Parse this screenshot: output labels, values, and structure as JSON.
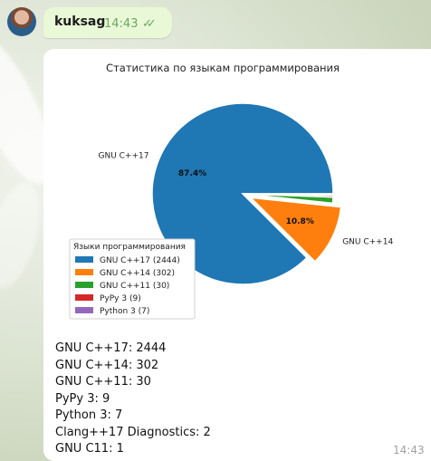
{
  "header": {
    "username": "kuksag",
    "time": "14:43",
    "status_icon": "double-check-icon",
    "accent_color": "#6aa861"
  },
  "chart_data": {
    "type": "pie",
    "title": "Статистика по языкам программирования",
    "categories": [
      "GNU C++17",
      "GNU C++14",
      "GNU C++11",
      "PyPy 3",
      "Python 3"
    ],
    "values": [
      2444,
      302,
      30,
      9,
      7
    ],
    "percent_labels": [
      "87.4%",
      "10.8%",
      "",
      "",
      ""
    ],
    "colors": [
      "#1f77b4",
      "#ff7f0e",
      "#2ca02c",
      "#d62728",
      "#9467bd"
    ],
    "exploded": [
      false,
      true,
      false,
      false,
      false
    ],
    "legend": {
      "title": "Языки программирования",
      "entries": [
        "GNU C++17 (2444)",
        "GNU C++14 (302)",
        "GNU C++11 (30)",
        "PyPy 3 (9)",
        "Python 3 (7)"
      ],
      "placement": "lower-left"
    }
  },
  "message": {
    "lines": [
      "GNU C++17: 2444",
      "GNU C++14: 302",
      "GNU C++11: 30",
      "PyPy 3: 9",
      "Python 3: 7",
      "Clang++17 Diagnostics: 2",
      "GNU C11: 1"
    ],
    "time": "14:43"
  }
}
